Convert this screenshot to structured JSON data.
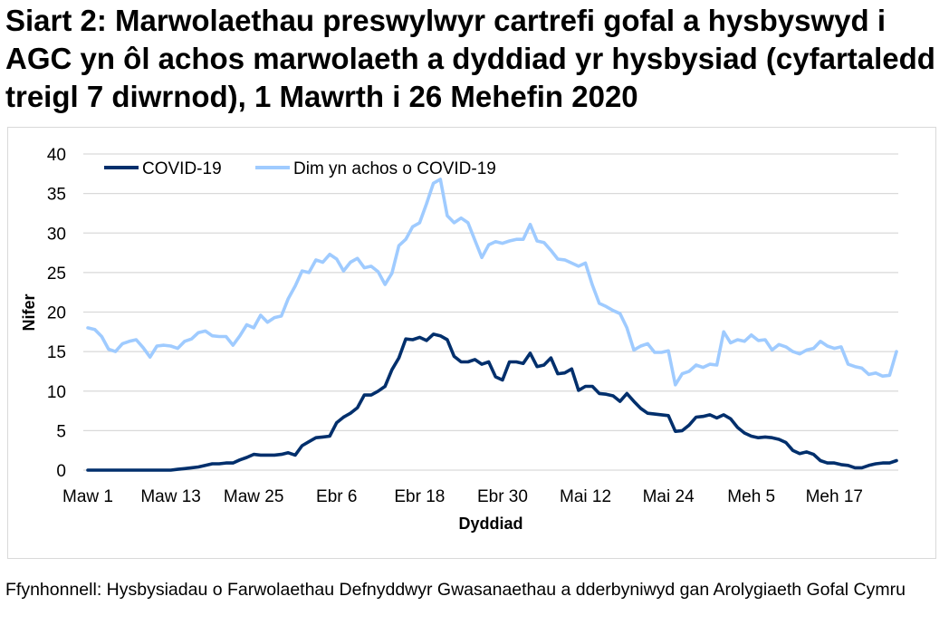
{
  "title": "Siart 2: Marwolaethau preswylwyr cartrefi gofal a hysbyswyd i AGC yn ôl achos marwolaeth a dyddiad yr hysbysiad (cyfartaledd treigl 7 diwrnod), 1 Mawrth i 26 Mehefin 2020",
  "source": "Ffynhonnell: Hysbysiadau o Farwolaethau Defnyddwyr Gwasanaethau a dderbyniwyd gan Arolygiaeth Gofal Cymru",
  "chart_data": {
    "type": "line",
    "title": "Siart 2: Marwolaethau preswylwyr cartrefi gofal a hysbyswyd i AGC yn ôl achos marwolaeth a dyddiad yr hysbysiad (cyfartaledd treigl 7 diwrnod), 1 Mawrth i 26 Mehefin 2020",
    "xlabel": "Dyddiad",
    "ylabel": "Nifer",
    "ylim": [
      0,
      40
    ],
    "yticks": [
      0,
      5,
      10,
      15,
      20,
      25,
      30,
      35,
      40
    ],
    "xtick_labels": [
      "Maw 1",
      "Maw 13",
      "Maw 25",
      "Ebr 6",
      "Ebr 18",
      "Ebr 30",
      "Mai 12",
      "Mai 24",
      "Meh 5",
      "Meh 17"
    ],
    "xtick_dates": [
      "2020-03-01",
      "2020-03-13",
      "2020-03-25",
      "2020-04-06",
      "2020-04-18",
      "2020-04-30",
      "2020-05-12",
      "2020-05-24",
      "2020-06-05",
      "2020-06-17"
    ],
    "grid": true,
    "legend_position": "top-left",
    "x": [
      "2020-03-01",
      "2020-03-02",
      "2020-03-03",
      "2020-03-04",
      "2020-03-05",
      "2020-03-06",
      "2020-03-07",
      "2020-03-08",
      "2020-03-09",
      "2020-03-10",
      "2020-03-11",
      "2020-03-12",
      "2020-03-13",
      "2020-03-14",
      "2020-03-15",
      "2020-03-16",
      "2020-03-17",
      "2020-03-18",
      "2020-03-19",
      "2020-03-20",
      "2020-03-21",
      "2020-03-22",
      "2020-03-23",
      "2020-03-24",
      "2020-03-25",
      "2020-03-26",
      "2020-03-27",
      "2020-03-28",
      "2020-03-29",
      "2020-03-30",
      "2020-03-31",
      "2020-04-01",
      "2020-04-02",
      "2020-04-03",
      "2020-04-04",
      "2020-04-05",
      "2020-04-06",
      "2020-04-07",
      "2020-04-08",
      "2020-04-09",
      "2020-04-10",
      "2020-04-11",
      "2020-04-12",
      "2020-04-13",
      "2020-04-14",
      "2020-04-15",
      "2020-04-16",
      "2020-04-17",
      "2020-04-18",
      "2020-04-19",
      "2020-04-20",
      "2020-04-21",
      "2020-04-22",
      "2020-04-23",
      "2020-04-24",
      "2020-04-25",
      "2020-04-26",
      "2020-04-27",
      "2020-04-28",
      "2020-04-29",
      "2020-04-30",
      "2020-05-01",
      "2020-05-02",
      "2020-05-03",
      "2020-05-04",
      "2020-05-05",
      "2020-05-06",
      "2020-05-07",
      "2020-05-08",
      "2020-05-09",
      "2020-05-10",
      "2020-05-11",
      "2020-05-12",
      "2020-05-13",
      "2020-05-14",
      "2020-05-15",
      "2020-05-16",
      "2020-05-17",
      "2020-05-18",
      "2020-05-19",
      "2020-05-20",
      "2020-05-21",
      "2020-05-22",
      "2020-05-23",
      "2020-05-24",
      "2020-05-25",
      "2020-05-26",
      "2020-05-27",
      "2020-05-28",
      "2020-05-29",
      "2020-05-30",
      "2020-05-31",
      "2020-06-01",
      "2020-06-02",
      "2020-06-03",
      "2020-06-04",
      "2020-06-05",
      "2020-06-06",
      "2020-06-07",
      "2020-06-08",
      "2020-06-09",
      "2020-06-10",
      "2020-06-11",
      "2020-06-12",
      "2020-06-13",
      "2020-06-14",
      "2020-06-15",
      "2020-06-16",
      "2020-06-17",
      "2020-06-18",
      "2020-06-19",
      "2020-06-20",
      "2020-06-21",
      "2020-06-22",
      "2020-06-23",
      "2020-06-24",
      "2020-06-25",
      "2020-06-26"
    ],
    "series": [
      {
        "name": "COVID-19",
        "color": "#002f6c",
        "values": [
          0,
          0,
          0,
          0,
          0,
          0,
          0,
          0,
          0,
          0,
          0,
          0,
          0,
          0.1,
          0.2,
          0.3,
          0.4,
          0.6,
          0.8,
          0.8,
          0.9,
          0.9,
          1.3,
          1.6,
          2.0,
          1.9,
          1.9,
          1.9,
          2.0,
          2.2,
          1.9,
          3.1,
          3.6,
          4.1,
          4.2,
          4.3,
          6.0,
          6.7,
          7.2,
          7.9,
          9.5,
          9.5,
          10.0,
          10.6,
          12.7,
          14.2,
          16.6,
          16.5,
          16.8,
          16.4,
          17.2,
          17.0,
          16.5,
          14.4,
          13.7,
          13.7,
          14.0,
          13.4,
          13.7,
          11.8,
          11.4,
          13.7,
          13.7,
          13.5,
          14.8,
          13.1,
          13.3,
          14.2,
          12.2,
          12.3,
          12.8,
          10.1,
          10.6,
          10.6,
          9.7,
          9.6,
          9.4,
          8.7,
          9.7,
          8.7,
          7.8,
          7.2,
          7.1,
          7.0,
          6.9,
          4.9,
          5.0,
          5.7,
          6.7,
          6.8,
          7.0,
          6.6,
          7.0,
          6.5,
          5.4,
          4.7,
          4.3,
          4.1,
          4.2,
          4.1,
          3.9,
          3.5,
          2.5,
          2.1,
          2.3,
          2.0,
          1.2,
          0.9,
          0.9,
          0.7,
          0.6,
          0.3,
          0.3,
          0.6,
          0.8,
          0.9,
          0.9,
          1.2
        ]
      },
      {
        "name": "Dim yn achos o COVID-19",
        "color": "#9fcbff",
        "values": [
          18.0,
          17.8,
          16.9,
          15.3,
          15.0,
          16.0,
          16.3,
          16.5,
          15.5,
          14.3,
          15.7,
          15.8,
          15.7,
          15.4,
          16.3,
          16.6,
          17.4,
          17.6,
          17.0,
          16.9,
          16.9,
          15.8,
          17.0,
          18.4,
          18.0,
          19.6,
          18.7,
          19.3,
          19.5,
          21.7,
          23.3,
          25.2,
          25.0,
          26.6,
          26.3,
          27.3,
          26.7,
          25.2,
          26.3,
          26.8,
          25.6,
          25.8,
          25.1,
          23.5,
          24.9,
          28.4,
          29.2,
          30.8,
          31.3,
          33.7,
          36.3,
          36.8,
          32.2,
          31.3,
          31.9,
          31.3,
          29.1,
          26.9,
          28.5,
          28.9,
          28.7,
          29.0,
          29.2,
          29.2,
          31.1,
          29.0,
          28.8,
          27.8,
          26.7,
          26.6,
          26.2,
          25.8,
          26.2,
          23.4,
          21.1,
          20.7,
          20.2,
          19.8,
          18.0,
          15.2,
          15.7,
          16.0,
          14.9,
          14.9,
          15.1,
          10.8,
          12.2,
          12.5,
          13.3,
          13.0,
          13.4,
          13.3,
          17.5,
          16.1,
          16.5,
          16.3,
          17.1,
          16.4,
          16.5,
          15.2,
          15.9,
          15.6,
          15.0,
          14.7,
          15.2,
          15.4,
          16.3,
          15.7,
          15.4,
          15.6,
          13.4,
          13.1,
          12.9,
          12.1,
          12.3,
          11.9,
          12.0,
          15.0
        ]
      }
    ]
  }
}
